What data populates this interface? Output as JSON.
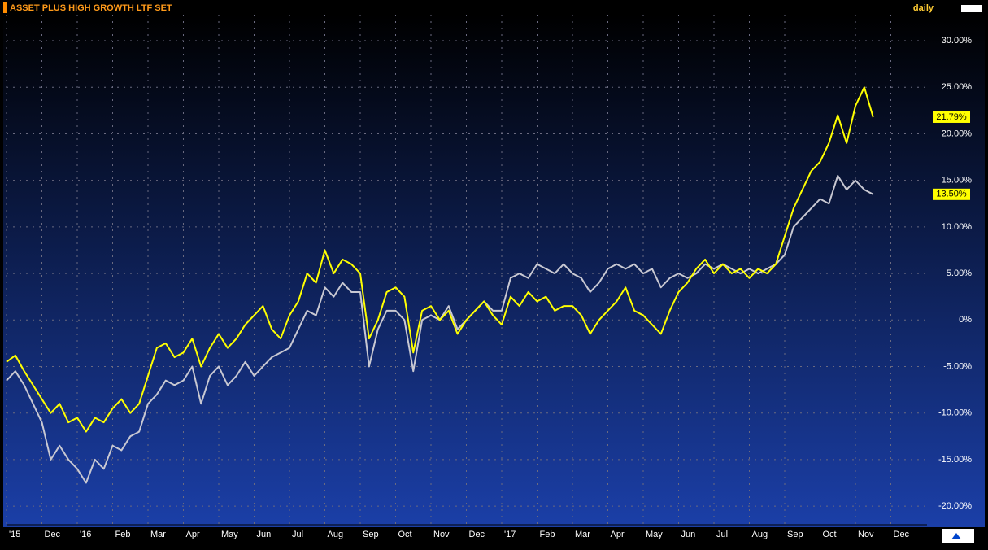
{
  "chart_data": {
    "type": "line",
    "title": "ASSET PLUS HIGH GROWTH LTF SET",
    "frequency": "daily",
    "categories": [
      "'15",
      null,
      null,
      null,
      "Dec",
      null,
      null,
      null,
      "'16",
      null,
      null,
      null,
      "Feb",
      null,
      null,
      null,
      "Mar",
      null,
      null,
      null,
      "Apr",
      null,
      null,
      null,
      "May",
      null,
      null,
      null,
      "Jun",
      null,
      null,
      null,
      "Jul",
      null,
      null,
      null,
      "Aug",
      null,
      null,
      null,
      "Sep",
      null,
      null,
      null,
      "Oct",
      null,
      null,
      null,
      "Nov",
      null,
      null,
      null,
      "Dec",
      null,
      null,
      null,
      "'17",
      null,
      null,
      null,
      "Feb",
      null,
      null,
      null,
      "Mar",
      null,
      null,
      null,
      "Apr",
      null,
      null,
      null,
      "May",
      null,
      null,
      null,
      "Jun",
      null,
      null,
      null,
      "Jul",
      null,
      null,
      null,
      "Aug",
      null,
      null,
      null,
      "Sep",
      null,
      null,
      null,
      "Oct",
      null,
      null,
      null,
      "Nov",
      null,
      null,
      null,
      "Dec",
      null,
      null,
      null
    ],
    "series": [
      {
        "color": "#ffff00",
        "values": [
          -4.5,
          -3.8,
          -5.5,
          -7,
          -8.5,
          -10,
          -9,
          -11,
          -10.5,
          -12,
          -10.5,
          -11,
          -9.5,
          -8.5,
          -10,
          -9,
          -6,
          -3,
          -2.5,
          -4,
          -3.5,
          -2,
          -5,
          -3,
          -1.5,
          -3,
          -2,
          -0.5,
          0.5,
          1.5,
          -1,
          -2,
          0.5,
          2,
          5,
          4,
          7.5,
          5,
          6.5,
          6,
          5,
          -2,
          0,
          3,
          3.5,
          2.5,
          -3.5,
          1,
          1.5,
          0,
          1,
          -1.5,
          0,
          1,
          2,
          0.5,
          -0.5,
          2.5,
          1.5,
          3,
          2,
          2.5,
          1,
          1.5,
          1.5,
          0.5,
          -1.5,
          0,
          1,
          2,
          3.5,
          1,
          0.5,
          -0.5,
          -1.5,
          1,
          3,
          4,
          5.5,
          6.5,
          5,
          6,
          5,
          5.5,
          4.5,
          5.5,
          5,
          6,
          9,
          12,
          14,
          16,
          17,
          19,
          22,
          19,
          23,
          25,
          21.79,
          null,
          null,
          null,
          null,
          null
        ],
        "last_label": {
          "value": 21.79,
          "label": "21.79%"
        }
      },
      {
        "color": "#c8c8d2",
        "values": [
          -6.5,
          -5.5,
          -7,
          -9,
          -11,
          -15,
          -13.5,
          -15,
          -16,
          -17.5,
          -15,
          -16,
          -13.5,
          -14,
          -12.5,
          -12,
          -9,
          -8,
          -6.5,
          -7,
          -6.5,
          -5,
          -9,
          -6,
          -5,
          -7,
          -6,
          -4.5,
          -6,
          -5,
          -4,
          -3.5,
          -3,
          -1,
          1,
          0.5,
          3.5,
          2.5,
          4,
          3,
          3,
          -5,
          -1,
          1,
          1,
          0,
          -5.5,
          0,
          0.5,
          0,
          1.5,
          -1,
          0,
          1,
          2,
          1,
          1,
          4.5,
          5,
          4.5,
          6,
          5.5,
          5,
          6,
          5,
          4.5,
          3,
          4,
          5.5,
          6,
          5.5,
          6,
          5,
          5.5,
          3.5,
          4.5,
          5,
          4.5,
          5,
          6,
          5.5,
          6,
          5.5,
          5,
          5.5,
          5,
          5.5,
          6,
          7,
          10,
          11,
          12,
          13,
          12.5,
          15.5,
          14,
          15,
          14,
          13.5,
          null,
          null,
          null,
          null,
          null
        ],
        "last_label": {
          "value": 13.5,
          "label": "13.50%"
        }
      }
    ],
    "ylim": [
      -22,
      32.8
    ],
    "yticks": [
      {
        "value": -20,
        "label": "-20.00%"
      },
      {
        "value": -15,
        "label": "-15.00%"
      },
      {
        "value": -10,
        "label": "-10.00%"
      },
      {
        "value": -5,
        "label": "-5.00%"
      },
      {
        "value": 0,
        "label": "0%"
      },
      {
        "value": 5,
        "label": "5.00%"
      },
      {
        "value": 10,
        "label": "10.00%"
      },
      {
        "value": 15,
        "label": "15.00%"
      },
      {
        "value": 20,
        "label": "20.00%"
      },
      {
        "value": 25,
        "label": "25.00%"
      },
      {
        "value": 30,
        "label": "30.00%"
      }
    ],
    "grid": true
  }
}
